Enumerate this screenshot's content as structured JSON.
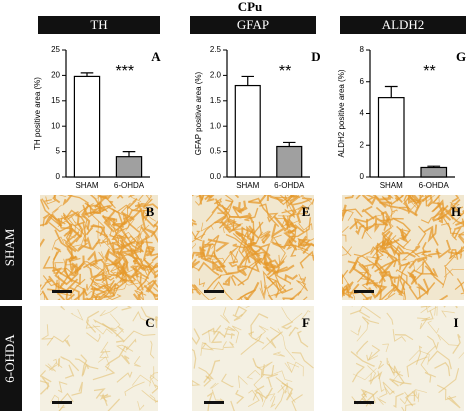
{
  "title": "CPu",
  "columns": [
    "TH",
    "GFAP",
    "ALDH2"
  ],
  "rows": [
    "SHAM",
    "6-OHDA"
  ],
  "panels": [
    [
      "B",
      "E",
      "H"
    ],
    [
      "C",
      "F",
      "I"
    ]
  ],
  "chart_data": [
    {
      "type": "bar",
      "label": "A",
      "significance": "***",
      "ylabel": "TH positive area (%)",
      "categories": [
        "SHAM",
        "6-OHDA"
      ],
      "values": [
        19.8,
        4.0
      ],
      "errors": [
        0.7,
        1.0
      ],
      "colors": [
        "#ffffff",
        "#a0a0a0"
      ],
      "ylim": [
        0,
        25
      ],
      "yticks": [
        0,
        5,
        10,
        15,
        20,
        25
      ]
    },
    {
      "type": "bar",
      "label": "D",
      "significance": "**",
      "ylabel": "GFAP positive area (%)",
      "categories": [
        "SHAM",
        "6-OHDA"
      ],
      "values": [
        1.8,
        0.6
      ],
      "errors": [
        0.18,
        0.08
      ],
      "colors": [
        "#ffffff",
        "#a0a0a0"
      ],
      "ylim": [
        0,
        2.5
      ],
      "yticks": [
        {
          "value": 0,
          "label": "0.0"
        },
        0.5,
        {
          "value": 1,
          "label": "1.0"
        },
        1.5,
        {
          "value": 2,
          "label": "2.0"
        },
        2.5
      ]
    },
    {
      "type": "bar",
      "label": "G",
      "significance": "**",
      "ylabel": "ALDH2 positive area (%)",
      "categories": [
        "SHAM",
        "6-OHDA"
      ],
      "values": [
        5.0,
        0.6
      ],
      "errors": [
        0.7,
        0.08
      ],
      "colors": [
        "#ffffff",
        "#a0a0a0"
      ],
      "ylim": [
        0,
        8
      ],
      "yticks": [
        0,
        2,
        4,
        6,
        8
      ]
    }
  ]
}
